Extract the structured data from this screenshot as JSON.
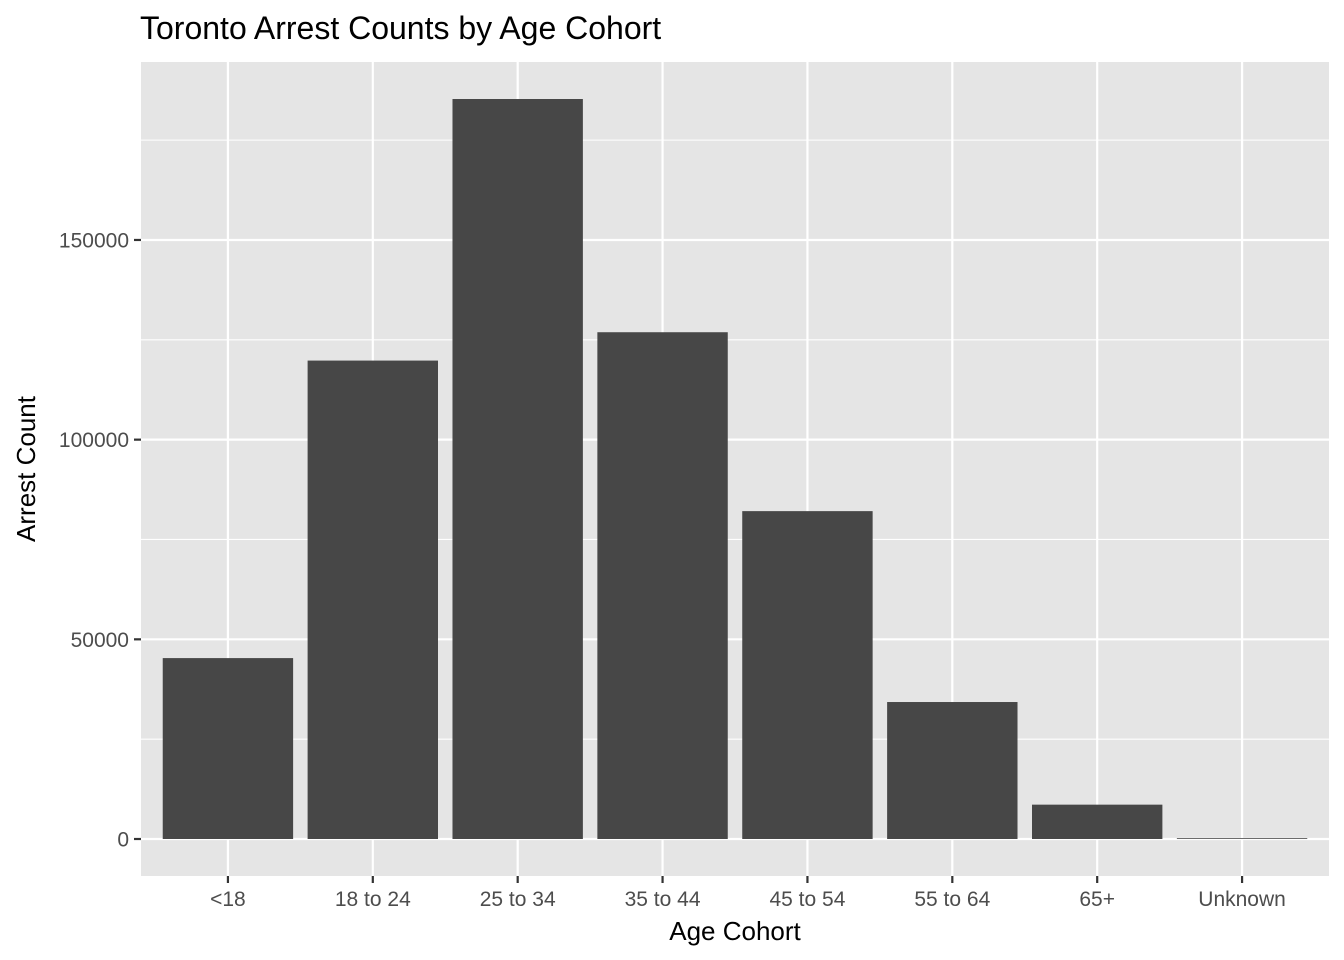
{
  "chart_data": {
    "type": "bar",
    "title": "Toronto Arrest Counts by Age Cohort",
    "xlabel": "Age Cohort",
    "ylabel": "Arrest Count",
    "categories": [
      "<18",
      "18 to 24",
      "25 to 34",
      "35 to 44",
      "45 to 54",
      "55 to 64",
      "65+",
      "Unknown"
    ],
    "values": [
      45300,
      119800,
      185300,
      126900,
      82100,
      34300,
      8600,
      200
    ],
    "ylim": [
      -9265,
      194565
    ],
    "y_ticks": [
      0,
      50000,
      100000,
      150000
    ],
    "y_tick_labels": [
      "0",
      "50000",
      "100000",
      "150000"
    ],
    "grid": true,
    "colors": {
      "bar": "#474747",
      "panel": "#e5e5e5",
      "grid": "#ffffff"
    }
  }
}
